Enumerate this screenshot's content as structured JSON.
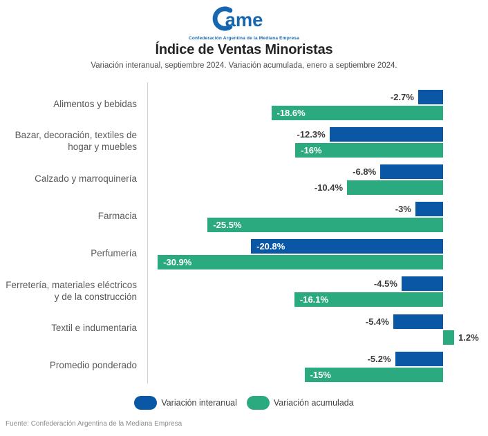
{
  "logo": {
    "brand": "Came",
    "brand_text_after_mark": "ame",
    "caption": "Confederación Argentina de la Mediana Empresa",
    "color": "#1766b0"
  },
  "chart_data": {
    "type": "bar",
    "orientation": "horizontal",
    "title": "Índice de Ventas Minoristas",
    "subtitle": "Variación interanual, septiembre 2024. Variación acumulada, enero a septiembre 2024.",
    "categories": [
      "Alimentos y bebidas",
      "Bazar, decoración, textiles de hogar y muebles",
      "Calzado y marroquinería",
      "Farmacia",
      "Perfumería",
      "Ferretería, materiales eléctricos y de la construcción",
      "Textil e indumentaria",
      "Promedio ponderado"
    ],
    "series": [
      {
        "name": "Variación interanual",
        "color": "#0a57a5",
        "values": [
          -2.7,
          -12.3,
          -6.8,
          -3,
          -20.8,
          -4.5,
          -5.4,
          -5.2
        ],
        "labels": [
          "-2.7%",
          "-12.3%",
          "-6.8%",
          "-3%",
          "-20.8%",
          "-4.5%",
          "-5.4%",
          "-5.2%"
        ]
      },
      {
        "name": "Variación acumulada",
        "color": "#2baa7f",
        "values": [
          -18.6,
          -16,
          -10.4,
          -25.5,
          -30.9,
          -16.1,
          1.2,
          -15
        ],
        "labels": [
          "-18.6%",
          "-16%",
          "-10.4%",
          "-25.5%",
          "-30.9%",
          "-16.1%",
          "1.2%",
          "-15%"
        ]
      }
    ],
    "value_format": "percent",
    "xlim": [
      -32,
      4
    ],
    "grid": false,
    "zero_line": true,
    "legend_position": "bottom"
  },
  "footer": "Fuente: Confederación Argentina de la Mediana Empresa"
}
